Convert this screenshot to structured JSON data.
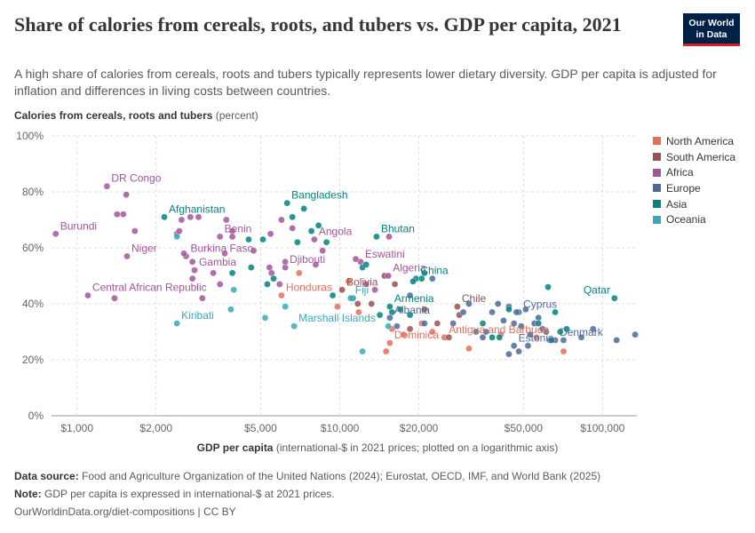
{
  "header": {
    "title": "Share of calories from cereals, roots, and tubers vs. GDP per capita, 2021",
    "subtitle": "A high share of calories from cereals, roots and tubers typically represents lower dietary diversity. GDP per capita is adjusted for inflation and differences in living costs between countries.",
    "logo_line1": "Our World",
    "logo_line2": "in Data"
  },
  "axis_labels": {
    "y_bold": "Calories from cereals, roots and tubers",
    "y_rest": " (percent)",
    "x_bold": "GDP per capita",
    "x_rest": " (international-$ in 2021 prices; plotted on a logarithmic axis)"
  },
  "footer": {
    "source_label": "Data source:",
    "source_text": " Food and Agriculture Organization of the United Nations (2024); Eurostat, OECD, IMF, and World Bank (2025)",
    "note_label": "Note:",
    "note_text": " GDP per capita is expressed in international-$ at 2021 prices.",
    "url": "OurWorldinData.org/diet-compositions | CC BY"
  },
  "colors": {
    "North America": "#e56e5a",
    "South America": "#9a5054",
    "Africa": "#a2559c",
    "Europe": "#4c6a9c",
    "Asia": "#00847e",
    "Oceania": "#38aaba"
  },
  "chart_data": {
    "type": "scatter",
    "x_scale": "log",
    "xlim": [
      800,
      135000
    ],
    "ylim": [
      0,
      100
    ],
    "x_ticks": [
      1000,
      2000,
      5000,
      10000,
      20000,
      50000,
      100000
    ],
    "x_tick_labels": [
      "$1,000",
      "$2,000",
      "$5,000",
      "$10,000",
      "$20,000",
      "$50,000",
      "$100,000"
    ],
    "y_ticks": [
      0,
      20,
      40,
      60,
      80,
      100
    ],
    "y_tick_labels": [
      "0%",
      "20%",
      "40%",
      "60%",
      "80%",
      "100%"
    ],
    "grid": "horizontal dashed",
    "legend_position": "right",
    "series": [
      {
        "name": "North America",
        "points": [
          {
            "x": 6000,
            "y": 43,
            "label": "Honduras"
          },
          {
            "x": 15500,
            "y": 26,
            "label": "Dominica"
          },
          {
            "x": 25000,
            "y": 28,
            "label": "Antigua and Barbuda"
          },
          {
            "x": 7000,
            "y": 51
          },
          {
            "x": 9800,
            "y": 39
          },
          {
            "x": 10800,
            "y": 48
          },
          {
            "x": 11800,
            "y": 37
          },
          {
            "x": 15000,
            "y": 23
          },
          {
            "x": 15800,
            "y": 31
          },
          {
            "x": 17500,
            "y": 29
          },
          {
            "x": 20500,
            "y": 33
          },
          {
            "x": 22500,
            "y": 30
          },
          {
            "x": 31000,
            "y": 24
          },
          {
            "x": 41000,
            "y": 29
          },
          {
            "x": 56000,
            "y": 28
          },
          {
            "x": 71000,
            "y": 23
          }
        ]
      },
      {
        "name": "South America",
        "points": [
          {
            "x": 10200,
            "y": 45,
            "label": "Bolivia"
          },
          {
            "x": 28000,
            "y": 39,
            "label": "Chile"
          },
          {
            "x": 11700,
            "y": 40
          },
          {
            "x": 13200,
            "y": 40
          },
          {
            "x": 14800,
            "y": 50
          },
          {
            "x": 16200,
            "y": 47
          },
          {
            "x": 18500,
            "y": 31
          },
          {
            "x": 21000,
            "y": 38
          },
          {
            "x": 23500,
            "y": 33
          },
          {
            "x": 26000,
            "y": 28
          },
          {
            "x": 28500,
            "y": 36
          }
        ]
      },
      {
        "name": "Africa",
        "points": [
          {
            "x": 1300,
            "y": 82,
            "label": "DR Congo"
          },
          {
            "x": 830,
            "y": 65,
            "label": "Burundi"
          },
          {
            "x": 1550,
            "y": 57,
            "label": "Niger"
          },
          {
            "x": 2600,
            "y": 57,
            "label": "Burkina Faso"
          },
          {
            "x": 3500,
            "y": 64,
            "label": "Benin"
          },
          {
            "x": 2800,
            "y": 52,
            "label": "Gambia"
          },
          {
            "x": 6200,
            "y": 53,
            "label": "Djibouti"
          },
          {
            "x": 8000,
            "y": 63,
            "label": "Angola"
          },
          {
            "x": 12000,
            "y": 55,
            "label": "Eswatini"
          },
          {
            "x": 15300,
            "y": 50,
            "label": "Algeria"
          },
          {
            "x": 1100,
            "y": 43,
            "label": "Central African Republic"
          },
          {
            "x": 1420,
            "y": 72
          },
          {
            "x": 1500,
            "y": 72
          },
          {
            "x": 1540,
            "y": 79
          },
          {
            "x": 1660,
            "y": 66
          },
          {
            "x": 1390,
            "y": 42
          },
          {
            "x": 2400,
            "y": 65
          },
          {
            "x": 2450,
            "y": 66
          },
          {
            "x": 2500,
            "y": 70
          },
          {
            "x": 2700,
            "y": 71
          },
          {
            "x": 2900,
            "y": 71
          },
          {
            "x": 2550,
            "y": 58
          },
          {
            "x": 2750,
            "y": 55
          },
          {
            "x": 3300,
            "y": 51
          },
          {
            "x": 2750,
            "y": 49
          },
          {
            "x": 3700,
            "y": 70
          },
          {
            "x": 3900,
            "y": 66
          },
          {
            "x": 3650,
            "y": 58
          },
          {
            "x": 3900,
            "y": 64
          },
          {
            "x": 4700,
            "y": 59
          },
          {
            "x": 5400,
            "y": 53
          },
          {
            "x": 5450,
            "y": 65
          },
          {
            "x": 6000,
            "y": 70
          },
          {
            "x": 6200,
            "y": 55
          },
          {
            "x": 5500,
            "y": 51
          },
          {
            "x": 5900,
            "y": 47
          },
          {
            "x": 6600,
            "y": 67
          },
          {
            "x": 8100,
            "y": 54
          },
          {
            "x": 8600,
            "y": 59
          },
          {
            "x": 11500,
            "y": 56
          },
          {
            "x": 12600,
            "y": 47
          },
          {
            "x": 13600,
            "y": 45
          },
          {
            "x": 15400,
            "y": 64
          },
          {
            "x": 3000,
            "y": 42
          },
          {
            "x": 3500,
            "y": 47
          }
        ]
      },
      {
        "name": "Europe",
        "points": [
          {
            "x": 15500,
            "y": 35,
            "label": "Albania"
          },
          {
            "x": 48000,
            "y": 37,
            "label": "Cyprus"
          },
          {
            "x": 46000,
            "y": 25,
            "label": "Estonia"
          },
          {
            "x": 66000,
            "y": 27,
            "label": "Denmark"
          },
          {
            "x": 16500,
            "y": 32
          },
          {
            "x": 18500,
            "y": 43
          },
          {
            "x": 21000,
            "y": 33
          },
          {
            "x": 22500,
            "y": 49
          },
          {
            "x": 27000,
            "y": 33
          },
          {
            "x": 29500,
            "y": 37
          },
          {
            "x": 31000,
            "y": 40
          },
          {
            "x": 33000,
            "y": 30
          },
          {
            "x": 35000,
            "y": 28
          },
          {
            "x": 36000,
            "y": 30
          },
          {
            "x": 38000,
            "y": 37
          },
          {
            "x": 40000,
            "y": 40
          },
          {
            "x": 42000,
            "y": 34
          },
          {
            "x": 44000,
            "y": 39
          },
          {
            "x": 46000,
            "y": 33
          },
          {
            "x": 47000,
            "y": 37
          },
          {
            "x": 49000,
            "y": 32
          },
          {
            "x": 51000,
            "y": 38
          },
          {
            "x": 53000,
            "y": 29
          },
          {
            "x": 55000,
            "y": 33
          },
          {
            "x": 57000,
            "y": 35
          },
          {
            "x": 59000,
            "y": 31
          },
          {
            "x": 61000,
            "y": 30
          },
          {
            "x": 63000,
            "y": 27
          },
          {
            "x": 71000,
            "y": 27
          },
          {
            "x": 83000,
            "y": 28
          },
          {
            "x": 92000,
            "y": 31
          },
          {
            "x": 113000,
            "y": 27
          },
          {
            "x": 133000,
            "y": 29
          },
          {
            "x": 44000,
            "y": 22
          },
          {
            "x": 48000,
            "y": 23
          },
          {
            "x": 52000,
            "y": 25
          }
        ]
      },
      {
        "name": "Asia",
        "points": [
          {
            "x": 2150,
            "y": 71,
            "label": "Afghanistan"
          },
          {
            "x": 6300,
            "y": 76,
            "label": "Bangladesh"
          },
          {
            "x": 13800,
            "y": 64,
            "label": "Bhutan"
          },
          {
            "x": 19500,
            "y": 49,
            "label": "China"
          },
          {
            "x": 15500,
            "y": 39,
            "label": "Armenia"
          },
          {
            "x": 111000,
            "y": 42,
            "label": "Qatar"
          },
          {
            "x": 3900,
            "y": 51
          },
          {
            "x": 4500,
            "y": 63
          },
          {
            "x": 4600,
            "y": 53
          },
          {
            "x": 5100,
            "y": 63
          },
          {
            "x": 5300,
            "y": 47
          },
          {
            "x": 5600,
            "y": 49
          },
          {
            "x": 6600,
            "y": 71
          },
          {
            "x": 6900,
            "y": 62
          },
          {
            "x": 7300,
            "y": 74
          },
          {
            "x": 7800,
            "y": 66
          },
          {
            "x": 8300,
            "y": 68
          },
          {
            "x": 8900,
            "y": 62
          },
          {
            "x": 9400,
            "y": 43
          },
          {
            "x": 11200,
            "y": 42
          },
          {
            "x": 12200,
            "y": 53
          },
          {
            "x": 12600,
            "y": 54
          },
          {
            "x": 14200,
            "y": 36
          },
          {
            "x": 15800,
            "y": 37
          },
          {
            "x": 17000,
            "y": 38
          },
          {
            "x": 18500,
            "y": 36
          },
          {
            "x": 19000,
            "y": 48
          },
          {
            "x": 20500,
            "y": 49
          },
          {
            "x": 21000,
            "y": 51
          },
          {
            "x": 35000,
            "y": 33
          },
          {
            "x": 38000,
            "y": 28
          },
          {
            "x": 40500,
            "y": 28
          },
          {
            "x": 44000,
            "y": 38
          },
          {
            "x": 57000,
            "y": 33
          },
          {
            "x": 62000,
            "y": 46
          },
          {
            "x": 66000,
            "y": 37
          },
          {
            "x": 69000,
            "y": 30
          },
          {
            "x": 73000,
            "y": 31
          },
          {
            "x": 64000,
            "y": 27
          }
        ]
      },
      {
        "name": "Oceania",
        "points": [
          {
            "x": 2400,
            "y": 33,
            "label": "Kiribati"
          },
          {
            "x": 6700,
            "y": 32,
            "label": "Marshall Islands"
          },
          {
            "x": 11000,
            "y": 42,
            "label": "Fiji"
          },
          {
            "x": 3950,
            "y": 45
          },
          {
            "x": 3850,
            "y": 38
          },
          {
            "x": 5200,
            "y": 35
          },
          {
            "x": 6200,
            "y": 39
          },
          {
            "x": 12200,
            "y": 23
          },
          {
            "x": 15300,
            "y": 32
          },
          {
            "x": 2400,
            "y": 64
          }
        ]
      }
    ]
  }
}
